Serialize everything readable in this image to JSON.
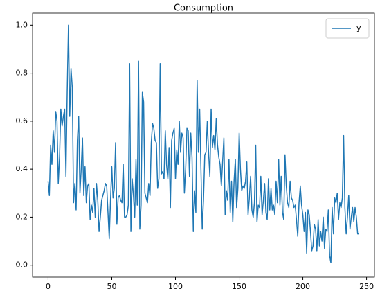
{
  "chart_data": {
    "type": "line",
    "title": "Consumption",
    "x": [
      0,
      1,
      2,
      3,
      4,
      5,
      6,
      7,
      8,
      9,
      10,
      11,
      12,
      13,
      14,
      15,
      16,
      17,
      18,
      19,
      20,
      21,
      22,
      23,
      24,
      25,
      26,
      27,
      28,
      29,
      30,
      31,
      32,
      33,
      34,
      35,
      36,
      37,
      38,
      39,
      40,
      41,
      42,
      43,
      44,
      45,
      46,
      47,
      48,
      49,
      50,
      51,
      52,
      53,
      54,
      55,
      56,
      57,
      58,
      59,
      60,
      61,
      62,
      63,
      64,
      65,
      66,
      67,
      68,
      69,
      70,
      71,
      72,
      73,
      74,
      75,
      76,
      77,
      78,
      79,
      80,
      81,
      82,
      83,
      84,
      85,
      86,
      87,
      88,
      89,
      90,
      91,
      92,
      93,
      94,
      95,
      96,
      97,
      98,
      99,
      100,
      101,
      102,
      103,
      104,
      105,
      106,
      107,
      108,
      109,
      110,
      111,
      112,
      113,
      114,
      115,
      116,
      117,
      118,
      119,
      120,
      121,
      122,
      123,
      124,
      125,
      126,
      127,
      128,
      129,
      130,
      131,
      132,
      133,
      134,
      135,
      136,
      137,
      138,
      139,
      140,
      141,
      142,
      143,
      144,
      145,
      146,
      147,
      148,
      149,
      150,
      151,
      152,
      153,
      154,
      155,
      156,
      157,
      158,
      159,
      160,
      161,
      162,
      163,
      164,
      165,
      166,
      167,
      168,
      169,
      170,
      171,
      172,
      173,
      174,
      175,
      176,
      177,
      178,
      179,
      180,
      181,
      182,
      183,
      184,
      185,
      186,
      187,
      188,
      189,
      190,
      191,
      192,
      193,
      194,
      195,
      196,
      197,
      198,
      199,
      200,
      201,
      202,
      203,
      204,
      205,
      206,
      207,
      208,
      209,
      210,
      211,
      212,
      213,
      214,
      215,
      216,
      217,
      218,
      219,
      220,
      221,
      222,
      223,
      224,
      225,
      226,
      227,
      228,
      229,
      230,
      231,
      232,
      233,
      234,
      235,
      236,
      237,
      238,
      239,
      240,
      241,
      242,
      243,
      244
    ],
    "series": [
      {
        "name": "y",
        "color": "#1f77b4",
        "values": [
          0.35,
          0.29,
          0.5,
          0.42,
          0.56,
          0.47,
          0.64,
          0.6,
          0.34,
          0.45,
          0.65,
          0.58,
          0.62,
          0.65,
          0.37,
          0.72,
          1.0,
          0.62,
          0.82,
          0.74,
          0.26,
          0.34,
          0.23,
          0.52,
          0.62,
          0.3,
          0.4,
          0.53,
          0.29,
          0.41,
          0.26,
          0.33,
          0.34,
          0.19,
          0.25,
          0.22,
          0.32,
          0.2,
          0.34,
          0.27,
          0.14,
          0.2,
          0.27,
          0.29,
          0.31,
          0.34,
          0.33,
          0.22,
          0.11,
          0.27,
          0.41,
          0.28,
          0.32,
          0.51,
          0.17,
          0.28,
          0.29,
          0.27,
          0.26,
          0.42,
          0.2,
          0.2,
          0.21,
          0.25,
          0.84,
          0.14,
          0.36,
          0.29,
          0.2,
          0.44,
          0.25,
          0.85,
          0.15,
          0.25,
          0.72,
          0.68,
          0.3,
          0.28,
          0.26,
          0.34,
          0.29,
          0.51,
          0.59,
          0.57,
          0.52,
          0.51,
          0.32,
          0.36,
          0.84,
          0.38,
          0.39,
          0.36,
          0.56,
          0.42,
          0.36,
          0.49,
          0.24,
          0.52,
          0.55,
          0.57,
          0.36,
          0.48,
          0.42,
          0.6,
          0.47,
          0.55,
          0.53,
          0.3,
          0.4,
          0.57,
          0.56,
          0.37,
          0.55,
          0.45,
          0.14,
          0.31,
          0.22,
          0.77,
          0.47,
          0.65,
          0.4,
          0.15,
          0.27,
          0.46,
          0.47,
          0.6,
          0.47,
          0.37,
          0.65,
          0.49,
          0.54,
          0.48,
          0.61,
          0.5,
          0.45,
          0.42,
          0.33,
          0.43,
          0.53,
          0.21,
          0.31,
          0.27,
          0.44,
          0.22,
          0.35,
          0.18,
          0.35,
          0.44,
          0.24,
          0.32,
          0.55,
          0.4,
          0.31,
          0.33,
          0.32,
          0.35,
          0.43,
          0.21,
          0.28,
          0.37,
          0.23,
          0.2,
          0.26,
          0.5,
          0.18,
          0.25,
          0.24,
          0.37,
          0.21,
          0.27,
          0.34,
          0.22,
          0.19,
          0.36,
          0.23,
          0.32,
          0.23,
          0.25,
          0.21,
          0.35,
          0.26,
          0.44,
          0.25,
          0.37,
          0.22,
          0.19,
          0.46,
          0.33,
          0.26,
          0.24,
          0.35,
          0.28,
          0.27,
          0.24,
          0.25,
          0.19,
          0.12,
          0.26,
          0.33,
          0.25,
          0.21,
          0.14,
          0.22,
          0.05,
          0.23,
          0.21,
          0.14,
          0.06,
          0.08,
          0.17,
          0.15,
          0.06,
          0.19,
          0.08,
          0.14,
          0.1,
          0.2,
          0.07,
          0.15,
          0.14,
          0.23,
          0.04,
          0.01,
          0.24,
          0.13,
          0.28,
          0.26,
          0.3,
          0.19,
          0.26,
          0.24,
          0.28,
          0.54,
          0.24,
          0.13,
          0.2,
          0.29,
          0.15,
          0.2,
          0.24,
          0.18,
          0.24,
          0.2,
          0.13,
          0.13
        ]
      }
    ],
    "xlim": [
      -12.2,
      256.2
    ],
    "xticks": [
      0,
      50,
      100,
      150,
      200,
      250
    ],
    "ylim": [
      -0.05,
      1.05
    ],
    "yticks": [
      {
        "value": 0,
        "label": "0.0"
      },
      0.2,
      0.4,
      0.6,
      0.8,
      {
        "value": 1,
        "label": "1.0"
      }
    ],
    "legend": "upper right",
    "grid": false
  }
}
